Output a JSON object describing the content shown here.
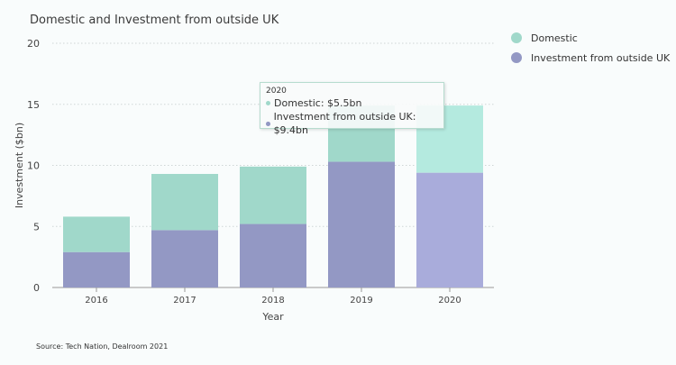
{
  "chart_data": {
    "type": "bar",
    "stacked": true,
    "title": "Domestic and Investment from outside UK",
    "xlabel": "Year",
    "ylabel": "Investment ($bn)",
    "ylim": [
      0,
      20
    ],
    "yticks": [
      0,
      5,
      10,
      15,
      20
    ],
    "grid": true,
    "legend_position": "right",
    "categories": [
      "2016",
      "2017",
      "2018",
      "2019",
      "2020"
    ],
    "series": [
      {
        "name": "Investment from outside UK",
        "color": "#9398c4",
        "highlight_color": "#a9acdb",
        "values": [
          2.9,
          4.7,
          5.2,
          10.3,
          9.4
        ]
      },
      {
        "name": "Domestic",
        "color": "#a0d8ca",
        "highlight_color": "#b4eadf",
        "values": [
          2.9,
          4.6,
          4.7,
          4.6,
          5.5
        ]
      }
    ],
    "highlighted_category": "2020"
  },
  "legend": [
    {
      "label": "Domestic",
      "color": "#a0d8ca"
    },
    {
      "label": "Investment from outside UK",
      "color": "#9398c4"
    }
  ],
  "tooltip": {
    "year": "2020",
    "rows": [
      {
        "text": "Domestic: $5.5bn",
        "color": "#a0d8ca"
      },
      {
        "text": "Investment from outside UK: $9.4bn",
        "color": "#9398c4"
      }
    ]
  },
  "source": "Source: Tech Nation, Dealroom 2021"
}
